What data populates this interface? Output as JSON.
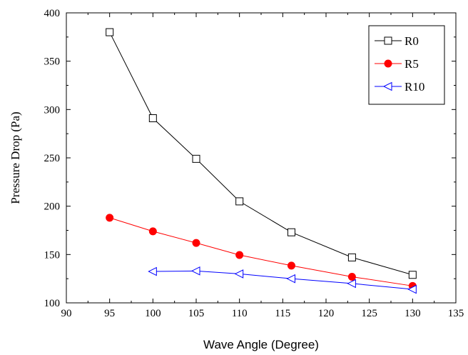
{
  "chart_data": {
    "type": "line",
    "title": "",
    "xlabel": "Wave Angle (Degree)",
    "ylabel": "Pressure Drop (Pa)",
    "xlim": [
      90,
      135
    ],
    "ylim": [
      100,
      400
    ],
    "xticks": [
      "90",
      "95",
      "100",
      "105",
      "110",
      "115",
      "120",
      "125",
      "130",
      "135"
    ],
    "yticks": [
      "100",
      "150",
      "200",
      "250",
      "300",
      "350",
      "400"
    ],
    "legend_position": "top-right",
    "grid": false,
    "series": [
      {
        "name": "R0",
        "color": "#000000",
        "marker": "open-square",
        "x": [
          95,
          100,
          105,
          110,
          116,
          123,
          130
        ],
        "y": [
          380,
          291,
          249,
          205,
          173,
          147,
          129
        ]
      },
      {
        "name": "R5",
        "color": "#ff0000",
        "marker": "filled-circle",
        "x": [
          95,
          100,
          105,
          110,
          116,
          123,
          130
        ],
        "y": [
          188,
          174,
          162,
          149.5,
          138.5,
          127,
          117.5
        ]
      },
      {
        "name": "R10",
        "color": "#0000ff",
        "marker": "open-left-triangle",
        "x": [
          100,
          105,
          110,
          116,
          123,
          130
        ],
        "y": [
          132.5,
          133,
          130,
          125,
          120,
          114
        ]
      }
    ]
  }
}
